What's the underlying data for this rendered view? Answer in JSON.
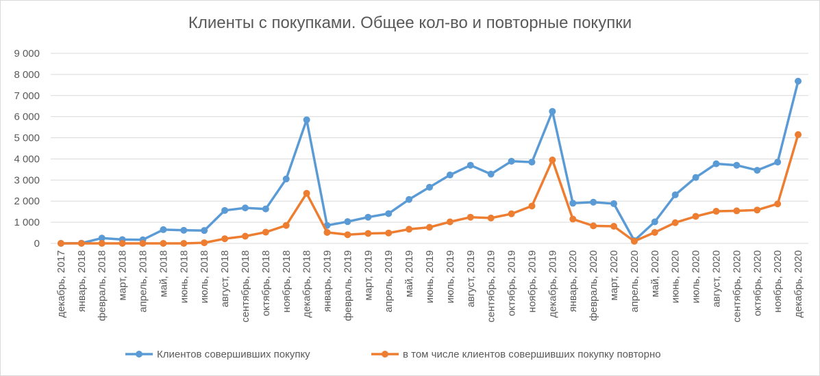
{
  "chart_data": {
    "type": "line",
    "title": "Клиенты с покупками. Общее кол-во и повторные покупки",
    "xlabel": "",
    "ylabel": "",
    "ylim": [
      0,
      9000
    ],
    "yticks": [
      "0",
      "1 000",
      "2 000",
      "3 000",
      "4 000",
      "5 000",
      "6 000",
      "7 000",
      "8 000",
      "9 000"
    ],
    "grid": true,
    "legend_position": "bottom",
    "categories": [
      "декабрь, 2017",
      "январь, 2018",
      "февраль, 2018",
      "март, 2018",
      "апрель, 2018",
      "май, 2018",
      "июнь, 2018",
      "июль, 2018",
      "август, 2018",
      "сентябрь, 2018",
      "октябрь, 2018",
      "ноябрь, 2018",
      "декабрь, 2018",
      "январь, 2019",
      "февраль, 2019",
      "март, 2019",
      "апрель, 2019",
      "май, 2019",
      "июнь, 2019",
      "июль, 2019",
      "август, 2019",
      "сентябрь, 2019",
      "октябрь, 2019",
      "ноябрь, 2019",
      "декабрь, 2019",
      "январь, 2020",
      "февраль, 2020",
      "март, 2020",
      "апрель, 2020",
      "май, 2020",
      "июнь, 2020",
      "июль, 2020",
      "август, 2020",
      "сентябрь, 2020",
      "октябрь, 2020",
      "ноябрь, 2020",
      "декабрь, 2020"
    ],
    "series": [
      {
        "name": "Клиентов совершивших покупку",
        "color": "#5b9bd5",
        "values": [
          0,
          10,
          250,
          180,
          170,
          650,
          620,
          610,
          1560,
          1680,
          1630,
          3050,
          5850,
          850,
          1030,
          1240,
          1410,
          2080,
          2660,
          3240,
          3700,
          3280,
          3890,
          3850,
          6250,
          1900,
          1950,
          1880,
          130,
          1020,
          2300,
          3120,
          3770,
          3700,
          3460,
          3850,
          7680
        ]
      },
      {
        "name": "в том числе клиентов совершивших покупку повторно",
        "color": "#ed7d31",
        "values": [
          0,
          0,
          0,
          0,
          0,
          0,
          0,
          30,
          220,
          340,
          530,
          850,
          2370,
          520,
          410,
          470,
          490,
          670,
          760,
          1020,
          1240,
          1200,
          1400,
          1770,
          3950,
          1150,
          830,
          810,
          100,
          520,
          980,
          1280,
          1520,
          1540,
          1580,
          1870,
          5150
        ]
      }
    ]
  }
}
